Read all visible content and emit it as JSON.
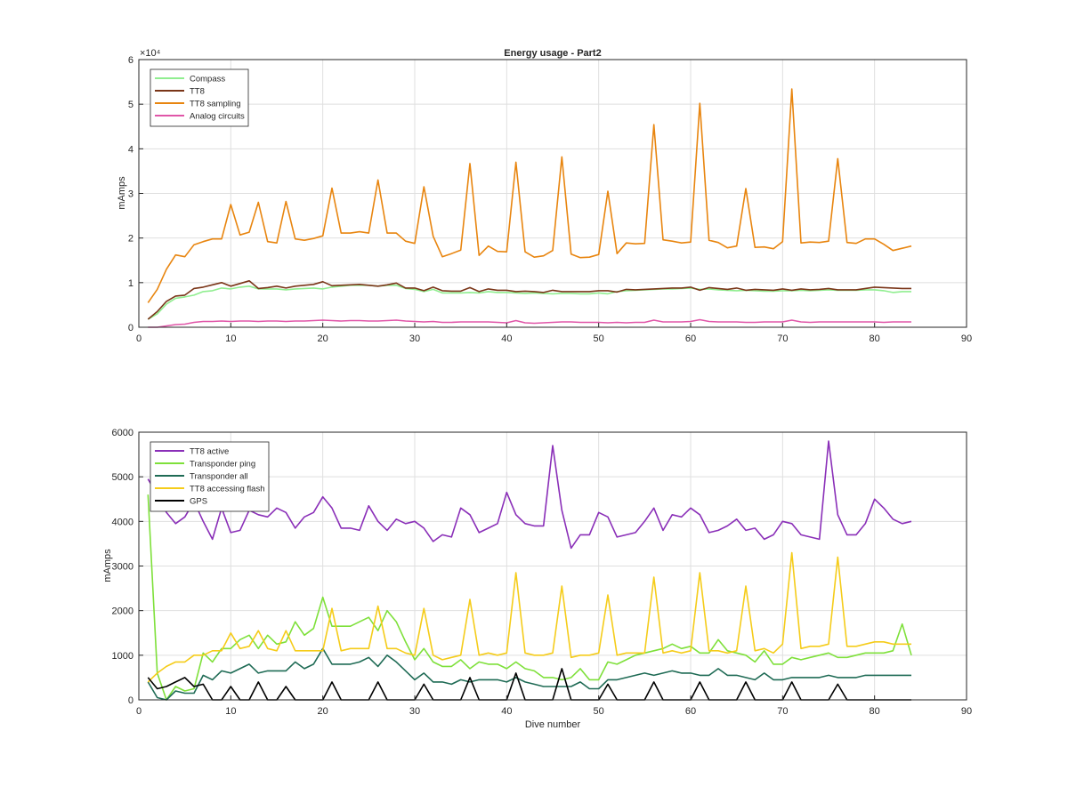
{
  "chart_data": [
    {
      "type": "line",
      "title": "Energy usage - Part2",
      "xlabel": "",
      "ylabel": "mAmps",
      "xlim": [
        0,
        90
      ],
      "ylim": [
        0,
        60000
      ],
      "xticks": [
        0,
        10,
        20,
        30,
        40,
        50,
        60,
        70,
        80,
        90
      ],
      "yticks": [
        0,
        10000,
        20000,
        30000,
        40000,
        50000,
        60000
      ],
      "ytick_labels": [
        "0",
        "1",
        "2",
        "3",
        "4",
        "5",
        "6"
      ],
      "y_exponent_label": "×10⁴",
      "grid": true,
      "legend_position": "top-left",
      "x_start": 1,
      "series": [
        {
          "name": "Compass",
          "color": "#90ee90",
          "values": [
            1800,
            3000,
            5200,
            6500,
            6800,
            7200,
            8000,
            8200,
            8800,
            8600,
            9000,
            9200,
            8600,
            8600,
            8600,
            8400,
            8600,
            8700,
            8800,
            8600,
            9000,
            9200,
            9400,
            9400,
            9400,
            9200,
            9400,
            9400,
            8700,
            8500,
            8000,
            8500,
            7700,
            7700,
            7700,
            7800,
            7700,
            8000,
            7800,
            7800,
            7700,
            7600,
            7700,
            7600,
            7500,
            7600,
            7600,
            7500,
            7500,
            7700,
            7500,
            8000,
            8200,
            8300,
            8400,
            8500,
            8600,
            8600,
            8700,
            8800,
            8500,
            8600,
            8400,
            8300,
            8200,
            8300,
            8200,
            8100,
            8100,
            8200,
            8200,
            8300,
            8200,
            8300,
            8400,
            8300,
            8300,
            8300,
            8400,
            8400,
            8200,
            7800,
            8000,
            8000
          ]
        },
        {
          "name": "TT8",
          "color": "#7a3518",
          "values": [
            1800,
            3500,
            5800,
            7000,
            7200,
            8700,
            9000,
            9500,
            10000,
            9200,
            9800,
            10400,
            8700,
            8900,
            9200,
            8800,
            9200,
            9400,
            9600,
            10200,
            9300,
            9400,
            9500,
            9600,
            9400,
            9200,
            9500,
            9900,
            8800,
            8800,
            8200,
            9000,
            8200,
            8100,
            8100,
            8900,
            8000,
            8600,
            8300,
            8300,
            8000,
            8100,
            8000,
            7800,
            8300,
            8000,
            8000,
            8000,
            8000,
            8200,
            8200,
            7900,
            8500,
            8400,
            8500,
            8600,
            8700,
            8800,
            8800,
            9000,
            8300,
            8900,
            8700,
            8500,
            8800,
            8300,
            8500,
            8400,
            8300,
            8600,
            8300,
            8600,
            8400,
            8500,
            8700,
            8400,
            8400,
            8400,
            8700,
            9000,
            8900,
            8800,
            8700,
            8700
          ]
        },
        {
          "name": "TT8 sampling",
          "color": "#e8850f",
          "values": [
            5500,
            8500,
            13000,
            16200,
            15800,
            18500,
            19200,
            19800,
            19800,
            27500,
            20700,
            21300,
            28000,
            19200,
            18900,
            28200,
            19800,
            19500,
            19900,
            20500,
            31200,
            21100,
            21100,
            21400,
            21100,
            33000,
            21100,
            21100,
            19300,
            18800,
            31500,
            20400,
            15800,
            16500,
            17300,
            36700,
            16100,
            18200,
            17000,
            16900,
            37000,
            16900,
            15700,
            16000,
            17200,
            38200,
            16400,
            15600,
            15700,
            16300,
            30500,
            16500,
            18900,
            18700,
            18800,
            45400,
            19600,
            19300,
            18900,
            19100,
            50200,
            19500,
            19000,
            17800,
            18200,
            31100,
            17900,
            18000,
            17600,
            19200,
            53400,
            18900,
            19100,
            19000,
            19300,
            37800,
            19000,
            18800,
            19800,
            19800,
            18600,
            17200,
            17700,
            18200
          ]
        },
        {
          "name": "Analog circuits",
          "color": "#e056a8",
          "values": [
            0,
            0,
            300,
            600,
            700,
            1100,
            1300,
            1300,
            1400,
            1300,
            1400,
            1400,
            1300,
            1400,
            1400,
            1300,
            1400,
            1400,
            1500,
            1600,
            1500,
            1400,
            1500,
            1500,
            1400,
            1400,
            1500,
            1600,
            1400,
            1300,
            1200,
            1300,
            1100,
            1100,
            1200,
            1200,
            1200,
            1200,
            1100,
            1000,
            1500,
            1000,
            900,
            1000,
            1100,
            1200,
            1200,
            1100,
            1100,
            1100,
            1000,
            1100,
            1000,
            1100,
            1100,
            1600,
            1200,
            1200,
            1200,
            1300,
            1700,
            1300,
            1200,
            1200,
            1200,
            1100,
            1100,
            1200,
            1200,
            1200,
            1600,
            1200,
            1100,
            1200,
            1200,
            1200,
            1200,
            1200,
            1200,
            1200,
            1100,
            1200,
            1200,
            1200
          ]
        }
      ]
    },
    {
      "type": "line",
      "title": "",
      "xlabel": "Dive number",
      "ylabel": "mAmps",
      "xlim": [
        0,
        90
      ],
      "ylim": [
        0,
        6000
      ],
      "xticks": [
        0,
        10,
        20,
        30,
        40,
        50,
        60,
        70,
        80,
        90
      ],
      "yticks": [
        0,
        1000,
        2000,
        3000,
        4000,
        5000,
        6000
      ],
      "ytick_labels": [
        "0",
        "1000",
        "2000",
        "3000",
        "4000",
        "5000",
        "6000"
      ],
      "grid": true,
      "legend_position": "top-left",
      "x_start": 1,
      "series": [
        {
          "name": "TT8 active",
          "color": "#8a2fb8",
          "values": [
            4950,
            4600,
            4200,
            3950,
            4100,
            4450,
            4000,
            3600,
            4300,
            3750,
            3800,
            4250,
            4150,
            4100,
            4300,
            4200,
            3850,
            4100,
            4200,
            4550,
            4300,
            3850,
            3850,
            3800,
            4350,
            4000,
            3800,
            4050,
            3950,
            4000,
            3850,
            3550,
            3700,
            3650,
            4300,
            4150,
            3750,
            3850,
            3950,
            4650,
            4150,
            3950,
            3900,
            3900,
            5700,
            4250,
            3400,
            3700,
            3700,
            4200,
            4100,
            3650,
            3700,
            3750,
            4000,
            4300,
            3800,
            4150,
            4100,
            4300,
            4150,
            3750,
            3800,
            3900,
            4050,
            3800,
            3850,
            3600,
            3700,
            4000,
            3950,
            3700,
            3650,
            3600,
            5800,
            4150,
            3700,
            3700,
            3950,
            4500,
            4300,
            4050,
            3950,
            4000
          ]
        },
        {
          "name": "Transponder ping",
          "color": "#7ee03a",
          "values": [
            4600,
            600,
            0,
            300,
            200,
            250,
            1050,
            850,
            1150,
            1150,
            1350,
            1450,
            1150,
            1450,
            1250,
            1300,
            1750,
            1450,
            1600,
            2300,
            1650,
            1650,
            1650,
            1750,
            1850,
            1550,
            2000,
            1750,
            1300,
            900,
            1150,
            850,
            750,
            750,
            900,
            700,
            850,
            800,
            800,
            700,
            850,
            700,
            650,
            500,
            500,
            450,
            500,
            700,
            450,
            450,
            850,
            800,
            900,
            1000,
            1050,
            1100,
            1150,
            1250,
            1150,
            1200,
            1050,
            1050,
            1350,
            1100,
            1050,
            1000,
            850,
            1100,
            800,
            800,
            950,
            900,
            950,
            1000,
            1050,
            950,
            950,
            1000,
            1050,
            1050,
            1050,
            1100,
            1700,
            1000
          ]
        },
        {
          "name": "Transponder all",
          "color": "#1f6b55",
          "values": [
            400,
            50,
            0,
            200,
            150,
            150,
            550,
            450,
            650,
            600,
            700,
            800,
            600,
            650,
            650,
            650,
            850,
            700,
            800,
            1150,
            800,
            800,
            800,
            850,
            950,
            750,
            1000,
            850,
            650,
            450,
            600,
            400,
            400,
            350,
            450,
            400,
            450,
            450,
            450,
            400,
            500,
            400,
            350,
            300,
            300,
            300,
            300,
            400,
            250,
            250,
            450,
            450,
            500,
            550,
            600,
            550,
            600,
            650,
            600,
            600,
            550,
            550,
            700,
            550,
            550,
            500,
            450,
            600,
            450,
            450,
            500,
            500,
            500,
            500,
            550,
            500,
            500,
            500,
            550,
            550,
            550,
            550,
            550,
            550
          ]
        },
        {
          "name": "TT8 accessing flash",
          "color": "#f5cc1a",
          "values": [
            400,
            600,
            750,
            850,
            850,
            1000,
            1000,
            1100,
            1100,
            1500,
            1150,
            1200,
            1550,
            1150,
            1100,
            1550,
            1100,
            1100,
            1100,
            1100,
            2050,
            1100,
            1150,
            1150,
            1150,
            2100,
            1150,
            1150,
            1050,
            1000,
            2050,
            1000,
            900,
            950,
            1000,
            2250,
            1000,
            1050,
            1000,
            1050,
            2850,
            1050,
            1000,
            1000,
            1050,
            2550,
            950,
            1000,
            1000,
            1050,
            2350,
            1000,
            1050,
            1050,
            1050,
            2750,
            1050,
            1100,
            1050,
            1100,
            2850,
            1100,
            1100,
            1050,
            1100,
            2550,
            1100,
            1150,
            1050,
            1250,
            3300,
            1150,
            1200,
            1200,
            1250,
            3200,
            1200,
            1200,
            1250,
            1300,
            1300,
            1250,
            1250,
            1250
          ]
        },
        {
          "name": "GPS",
          "color": "#000000",
          "values": [
            500,
            250,
            300,
            400,
            500,
            300,
            350,
            0,
            0,
            300,
            0,
            0,
            400,
            0,
            0,
            300,
            0,
            0,
            0,
            0,
            400,
            0,
            0,
            0,
            0,
            400,
            0,
            0,
            0,
            0,
            350,
            0,
            0,
            0,
            0,
            500,
            0,
            0,
            0,
            0,
            600,
            0,
            0,
            0,
            0,
            700,
            0,
            0,
            0,
            0,
            350,
            0,
            0,
            0,
            0,
            400,
            0,
            0,
            0,
            0,
            400,
            0,
            0,
            0,
            0,
            400,
            0,
            0,
            0,
            0,
            400,
            0,
            0,
            0,
            0,
            350,
            0,
            0,
            0,
            0,
            0,
            0,
            0,
            0
          ]
        }
      ]
    }
  ]
}
